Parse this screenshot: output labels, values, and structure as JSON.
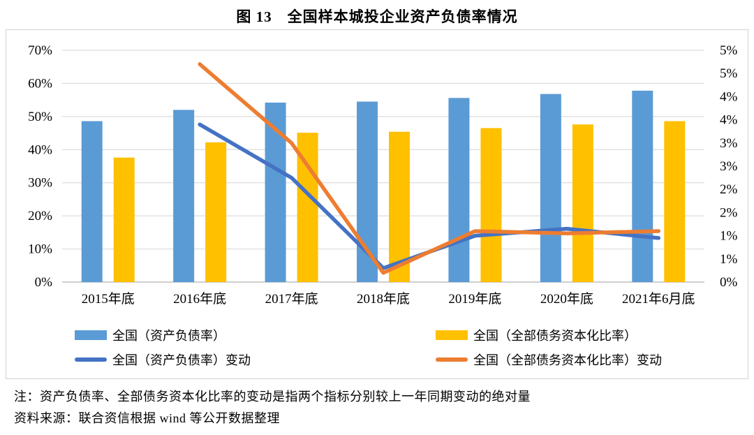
{
  "title": "图 13　全国样本城投企业资产负债率情况",
  "chart_data": {
    "type": "bar",
    "subtype": "bar+line combo, dual axis",
    "categories": [
      "2015年底",
      "2016年底",
      "2017年底",
      "2018年底",
      "2019年底",
      "2020年底",
      "2021年6月底"
    ],
    "bar_series": [
      {
        "name": "全国（资产负债率）",
        "axis": "left",
        "color": "#5B9BD5",
        "values": [
          48.6,
          52.0,
          54.2,
          54.5,
          55.6,
          56.8,
          57.8
        ]
      },
      {
        "name": "全国（全部债务资本化比率）",
        "axis": "left",
        "color": "#FFC000",
        "values": [
          37.6,
          42.2,
          45.1,
          45.4,
          46.5,
          47.6,
          48.6
        ]
      }
    ],
    "line_series": [
      {
        "name": "全国（资产负债率）变动",
        "axis": "right",
        "color": "#4472C4",
        "values": [
          null,
          3.4,
          2.25,
          0.3,
          1.0,
          1.15,
          0.95
        ]
      },
      {
        "name": "全国（全部债务资本化比率）变动",
        "axis": "right",
        "color": "#ED7D31",
        "values": [
          null,
          4.7,
          3.0,
          0.2,
          1.1,
          1.05,
          1.1
        ]
      }
    ],
    "left_axis": {
      "min": 0,
      "max": 70,
      "step": 10,
      "tick_labels": [
        "70%",
        "60%",
        "50%",
        "40%",
        "30%",
        "20%",
        "10%",
        "0%"
      ]
    },
    "right_axis": {
      "min": 0,
      "max": 5,
      "step": 0.5,
      "tick_labels": [
        "5%",
        "5%",
        "4%",
        "4%",
        "3%",
        "3%",
        "2%",
        "2%",
        "1%",
        "1%",
        "0%"
      ]
    },
    "grid": "horizontal gridlines on",
    "legend_position": "bottom",
    "gridline_color": "#DCDCDC",
    "axis_line_color": "#BFBFBF"
  },
  "legend": {
    "items": [
      {
        "label": "全国（资产负债率）",
        "swatch": "bar",
        "color": "#5B9BD5"
      },
      {
        "label": "全国（资产负债率）变动",
        "swatch": "line",
        "color": "#4472C4"
      },
      {
        "label": "全国（全部债务资本化比率）",
        "swatch": "bar",
        "color": "#FFC000"
      },
      {
        "label": "全国（全部债务资本化比率）变动",
        "swatch": "line",
        "color": "#ED7D31"
      }
    ]
  },
  "notes": {
    "note": "注：资产负债率、全部债务资本化比率的变动是指两个指标分别较上一年同期变动的绝对量",
    "source": "资料来源：联合资信根据 wind 等公开数据整理"
  }
}
